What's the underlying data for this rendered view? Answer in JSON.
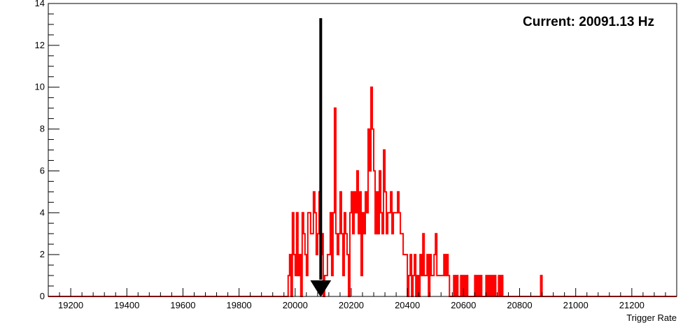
{
  "chart_data": {
    "type": "histogram",
    "xlabel": "Trigger Rate",
    "ylabel": "",
    "xlim": [
      19120,
      21360
    ],
    "ylim": [
      0,
      14
    ],
    "x_ticks": [
      19200,
      19400,
      19600,
      19800,
      20000,
      20200,
      20400,
      20600,
      20800,
      21000,
      21200
    ],
    "y_ticks": [
      0,
      2,
      4,
      6,
      8,
      10,
      12,
      14
    ],
    "annotation": "Current: 20091.13 Hz",
    "current_value": 20091.13,
    "bin_width": 5,
    "bins": [
      [
        19975,
        1
      ],
      [
        19980,
        2
      ],
      [
        19985,
        0
      ],
      [
        19990,
        4
      ],
      [
        19995,
        2
      ],
      [
        20000,
        1
      ],
      [
        20005,
        4
      ],
      [
        20010,
        1
      ],
      [
        20015,
        2
      ],
      [
        20020,
        0
      ],
      [
        20025,
        4
      ],
      [
        20030,
        3
      ],
      [
        20035,
        2
      ],
      [
        20040,
        1
      ],
      [
        20045,
        4
      ],
      [
        20050,
        4
      ],
      [
        20055,
        3
      ],
      [
        20060,
        3
      ],
      [
        20065,
        5
      ],
      [
        20070,
        4
      ],
      [
        20075,
        2
      ],
      [
        20080,
        3
      ],
      [
        20085,
        5
      ],
      [
        20090,
        2
      ],
      [
        20095,
        3
      ],
      [
        20100,
        0
      ],
      [
        20105,
        1
      ],
      [
        20110,
        1
      ],
      [
        20115,
        2
      ],
      [
        20120,
        2
      ],
      [
        20125,
        4
      ],
      [
        20130,
        1
      ],
      [
        20135,
        4
      ],
      [
        20140,
        9
      ],
      [
        20145,
        3
      ],
      [
        20150,
        2
      ],
      [
        20155,
        3
      ],
      [
        20160,
        5
      ],
      [
        20165,
        3
      ],
      [
        20170,
        1
      ],
      [
        20175,
        4
      ],
      [
        20180,
        3
      ],
      [
        20185,
        2
      ],
      [
        20190,
        0
      ],
      [
        20195,
        4
      ],
      [
        20200,
        5
      ],
      [
        20205,
        3
      ],
      [
        20210,
        5
      ],
      [
        20215,
        4
      ],
      [
        20220,
        6
      ],
      [
        20225,
        3
      ],
      [
        20230,
        5
      ],
      [
        20235,
        1
      ],
      [
        20240,
        4
      ],
      [
        20245,
        3
      ],
      [
        20250,
        5
      ],
      [
        20255,
        4
      ],
      [
        20260,
        8
      ],
      [
        20265,
        6
      ],
      [
        20270,
        10
      ],
      [
        20275,
        8
      ],
      [
        20280,
        6
      ],
      [
        20285,
        3
      ],
      [
        20290,
        5
      ],
      [
        20295,
        3
      ],
      [
        20300,
        6
      ],
      [
        20305,
        4
      ],
      [
        20310,
        3
      ],
      [
        20315,
        7
      ],
      [
        20320,
        5
      ],
      [
        20325,
        3
      ],
      [
        20330,
        4
      ],
      [
        20335,
        4
      ],
      [
        20340,
        5
      ],
      [
        20345,
        3
      ],
      [
        20350,
        4
      ],
      [
        20355,
        4
      ],
      [
        20360,
        4
      ],
      [
        20365,
        5
      ],
      [
        20370,
        4
      ],
      [
        20375,
        3
      ],
      [
        20380,
        3
      ],
      [
        20385,
        2
      ],
      [
        20390,
        2
      ],
      [
        20395,
        2
      ],
      [
        20400,
        0
      ],
      [
        20405,
        1
      ],
      [
        20410,
        2
      ],
      [
        20415,
        0
      ],
      [
        20420,
        1
      ],
      [
        20425,
        2
      ],
      [
        20430,
        0
      ],
      [
        20435,
        1
      ],
      [
        20440,
        0
      ],
      [
        20445,
        2
      ],
      [
        20450,
        1
      ],
      [
        20455,
        3
      ],
      [
        20460,
        1
      ],
      [
        20465,
        1
      ],
      [
        20470,
        2
      ],
      [
        20475,
        0
      ],
      [
        20480,
        2
      ],
      [
        20485,
        1
      ],
      [
        20490,
        1
      ],
      [
        20495,
        2
      ],
      [
        20500,
        3
      ],
      [
        20505,
        1
      ],
      [
        20510,
        1
      ],
      [
        20515,
        1
      ],
      [
        20520,
        1
      ],
      [
        20525,
        1
      ],
      [
        20530,
        2
      ],
      [
        20535,
        1
      ],
      [
        20540,
        2
      ],
      [
        20545,
        1
      ],
      [
        20550,
        0
      ],
      [
        20555,
        0
      ],
      [
        20560,
        0
      ],
      [
        20565,
        1
      ],
      [
        20570,
        0
      ],
      [
        20575,
        1
      ],
      [
        20580,
        0
      ],
      [
        20585,
        0
      ],
      [
        20590,
        1
      ],
      [
        20595,
        0
      ],
      [
        20600,
        1
      ],
      [
        20605,
        0
      ],
      [
        20610,
        1
      ],
      [
        20615,
        0
      ],
      [
        20620,
        0
      ],
      [
        20625,
        0
      ],
      [
        20630,
        0
      ],
      [
        20635,
        0
      ],
      [
        20640,
        1
      ],
      [
        20645,
        0
      ],
      [
        20650,
        1
      ],
      [
        20655,
        0
      ],
      [
        20660,
        1
      ],
      [
        20665,
        0
      ],
      [
        20670,
        0
      ],
      [
        20675,
        0
      ],
      [
        20680,
        1
      ],
      [
        20685,
        0
      ],
      [
        20690,
        1
      ],
      [
        20695,
        0
      ],
      [
        20700,
        1
      ],
      [
        20705,
        0
      ],
      [
        20710,
        1
      ],
      [
        20715,
        0
      ],
      [
        20720,
        0
      ],
      [
        20725,
        1
      ],
      [
        20730,
        0
      ],
      [
        20735,
        1
      ],
      [
        20740,
        0
      ],
      [
        20745,
        0
      ],
      [
        20750,
        0
      ],
      [
        20755,
        0
      ],
      [
        20760,
        0
      ],
      [
        20765,
        0
      ],
      [
        20770,
        0
      ],
      [
        20775,
        0
      ],
      [
        20780,
        0
      ],
      [
        20785,
        0
      ],
      [
        20790,
        0
      ],
      [
        20795,
        0
      ],
      [
        20800,
        0
      ],
      [
        20805,
        0
      ],
      [
        20810,
        0
      ],
      [
        20815,
        0
      ],
      [
        20820,
        0
      ],
      [
        20825,
        0
      ],
      [
        20830,
        0
      ],
      [
        20835,
        0
      ],
      [
        20840,
        0
      ],
      [
        20845,
        0
      ],
      [
        20850,
        0
      ],
      [
        20855,
        0
      ],
      [
        20860,
        0
      ],
      [
        20865,
        0
      ],
      [
        20870,
        0
      ],
      [
        20875,
        1
      ]
    ],
    "colors": {
      "histogram": "#ff0000",
      "arrow": "#000000",
      "axis": "#000000",
      "background": "#ffffff"
    }
  }
}
